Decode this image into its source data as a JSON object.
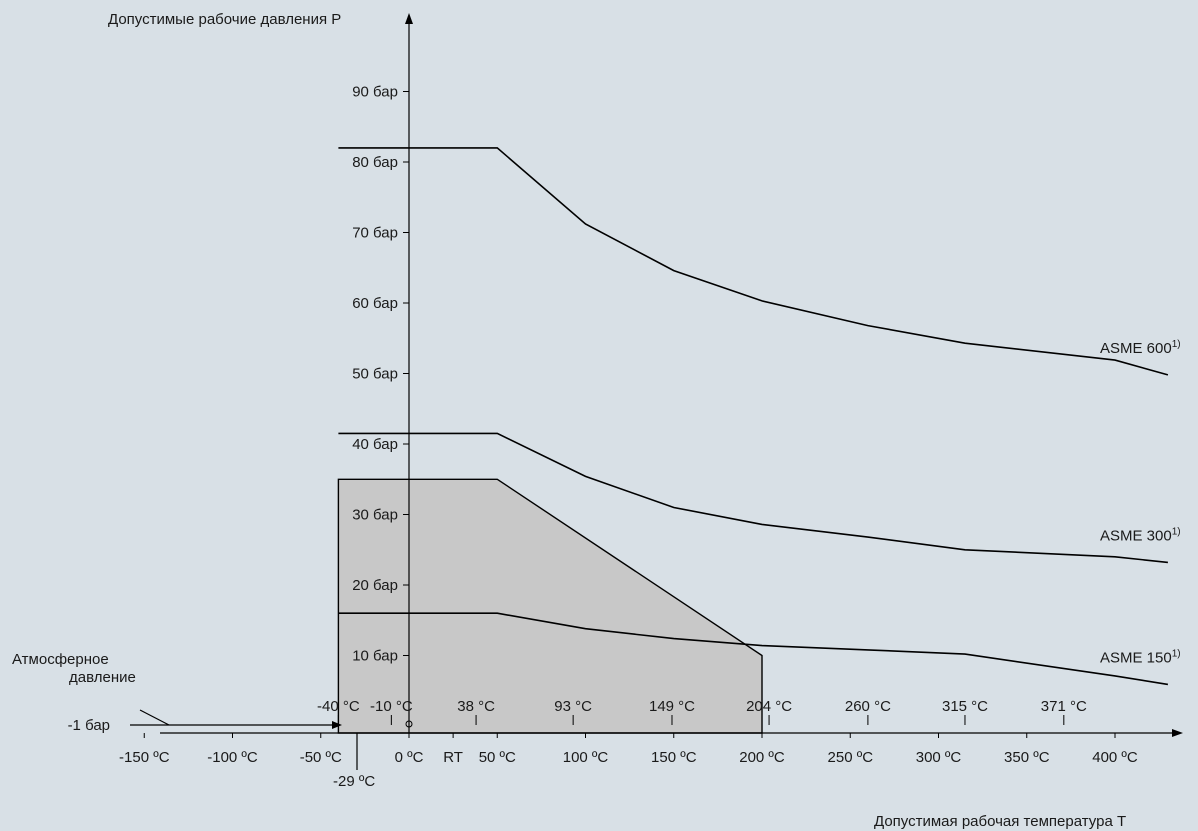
{
  "chart_data": {
    "type": "line",
    "ylabel": "Допустимые рабочие давления P",
    "xlabel": "Допустимая рабочая температура T",
    "y_unit": "бар",
    "x_unit": "°C",
    "ylim": [
      -1,
      100
    ],
    "xlim": [
      -170,
      435
    ],
    "y_ticks": [
      "90 бар",
      "80 бар",
      "70 бар",
      "60 бар",
      "50 бар",
      "40 бар",
      "30 бар",
      "20 бар",
      "10 бар",
      "-1 бар"
    ],
    "x_ticks_bottom": [
      "-150 ºC",
      "-100 ºC",
      "-50 ºC",
      "0 ºC",
      "RT",
      "50 ºC",
      "100 ºC",
      "150 ºC",
      "200 ºC",
      "250 ºC",
      "300 ºC",
      "350 ºC",
      "400 ºC"
    ],
    "x_ticks_top": [
      "-40 °C",
      "-10 °C",
      "38 °C",
      "93 °C",
      "149 °C",
      "204 °C",
      "260 °C",
      "315 °C",
      "371 °C"
    ],
    "annotations": {
      "atmospheric": "Атмосферное давление",
      "atm_line1": "Атмосферное",
      "atm_line2": "давление",
      "min_temp": "-29 ºC"
    },
    "series": [
      {
        "name": "ASME 600",
        "footnote": "1)",
        "x": [
          -40,
          50,
          100,
          150,
          200,
          260,
          315,
          400,
          430
        ],
        "y": [
          82,
          82,
          71.2,
          64.6,
          60.3,
          56.8,
          54.3,
          51.9,
          49.8
        ]
      },
      {
        "name": "ASME 300",
        "footnote": "1)",
        "x": [
          -40,
          50,
          100,
          150,
          200,
          260,
          315,
          400,
          430
        ],
        "y": [
          41.5,
          41.5,
          35.4,
          31.0,
          28.6,
          26.8,
          25.0,
          24.0,
          23.2
        ]
      },
      {
        "name": "ASME 150",
        "footnote": "1)",
        "x": [
          -40,
          50,
          100,
          150,
          200,
          260,
          315,
          400,
          430
        ],
        "y": [
          16.0,
          16.0,
          13.8,
          12.4,
          11.4,
          10.8,
          10.2,
          7.1,
          5.9
        ]
      }
    ],
    "shaded_region": {
      "x": [
        -40,
        -40,
        50,
        200,
        200
      ],
      "y": [
        -1,
        35,
        35,
        10,
        -1
      ],
      "color": "#c8c8c8"
    }
  }
}
